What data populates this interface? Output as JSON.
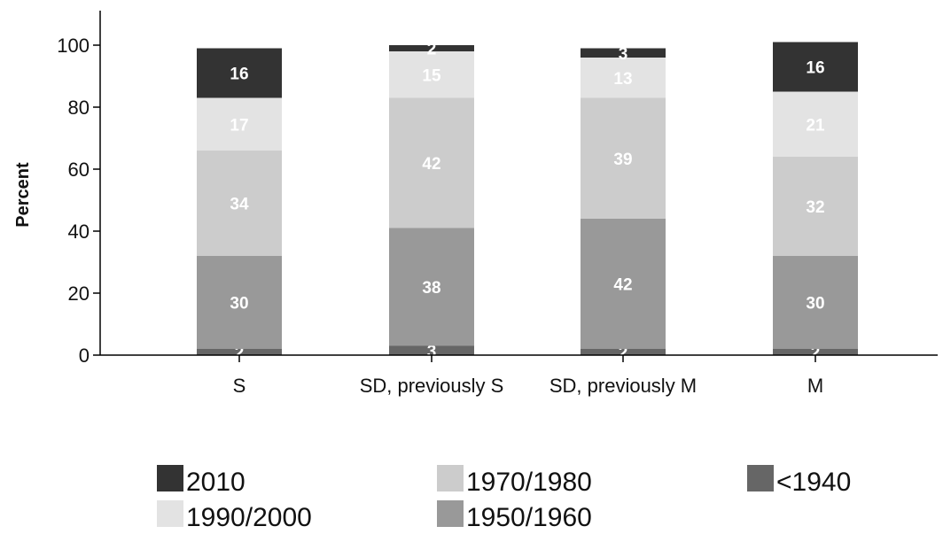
{
  "chart_data": {
    "type": "bar",
    "stacked": true,
    "ylabel": "Percent",
    "ylim": [
      0,
      100
    ],
    "yticks": [
      0,
      20,
      40,
      60,
      80,
      100
    ],
    "categories": [
      "S",
      "SD, previously S",
      "SD, previously M",
      "M"
    ],
    "series": [
      {
        "name": "<1940",
        "color": "#666666",
        "values": [
          2,
          3,
          2,
          2
        ]
      },
      {
        "name": "1950/1960",
        "color": "#999999",
        "values": [
          30,
          38,
          42,
          30
        ]
      },
      {
        "name": "1970/1980",
        "color": "#cccccc",
        "values": [
          34,
          42,
          39,
          32
        ]
      },
      {
        "name": "1990/2000",
        "color": "#e3e3e3",
        "values": [
          17,
          15,
          13,
          21
        ]
      },
      {
        "name": "2010",
        "color": "#333333",
        "values": [
          16,
          2,
          3,
          16
        ]
      }
    ],
    "legend": {
      "placement": "bottom",
      "entries": [
        "2010",
        "1970/1980",
        "<1940",
        "1990/2000",
        "1950/1960"
      ]
    }
  }
}
